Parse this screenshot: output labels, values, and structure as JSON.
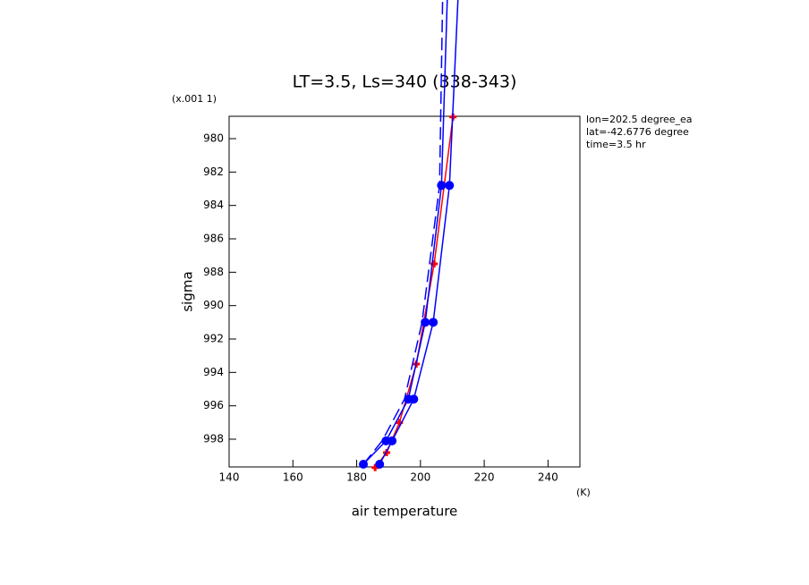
{
  "chart_data": {
    "type": "line",
    "title": "LT=3.5, Ls=340 (338-343)",
    "x_label": "air temperature",
    "x_unit": "(K)",
    "y_label": "sigma",
    "y_scale_label": "(x.001 1)",
    "annotations": [
      "lon=202.5 degree_ea",
      "lat=-42.6776 degree",
      "time=3.5 hr"
    ],
    "xlim": [
      140,
      250
    ],
    "xticks": [
      140,
      160,
      180,
      200,
      220,
      240
    ],
    "ylim": [
      999.66,
      978.66
    ],
    "yticks": [
      980,
      982,
      984,
      986,
      988,
      990,
      992,
      994,
      996,
      998
    ],
    "series": [
      {
        "color": "#ff0000",
        "marker": "plus",
        "dash": "none",
        "x": [
          185.8,
          189.4,
          193.4,
          198.7,
          204.3,
          210.2
        ],
        "values": [
          999.7,
          998.8,
          997.0,
          993.5,
          987.5,
          978.7
        ]
      },
      {
        "color": "#0000ff",
        "marker": "circle",
        "dash": "none",
        "x": [
          182.1,
          189.2,
          196.2,
          201.5,
          206.6,
          208.5
        ],
        "values": [
          999.5,
          998.1,
          995.6,
          991.0,
          982.8,
          971.1
        ]
      },
      {
        "color": "#0000ff",
        "marker": "circle",
        "dash": "none",
        "x": [
          187.2,
          191.1,
          197.9,
          204.0,
          209.1,
          211.9
        ],
        "values": [
          999.5,
          998.1,
          995.6,
          991.0,
          982.8,
          971.1
        ]
      },
      {
        "color": "#0000ff",
        "marker": "none",
        "dash": "14 6",
        "x": [
          182.1,
          188.0,
          195.0,
          200.5,
          206.0,
          207.0
        ],
        "values": [
          999.5,
          998.1,
          995.6,
          991.0,
          982.8,
          971.1
        ]
      }
    ]
  }
}
